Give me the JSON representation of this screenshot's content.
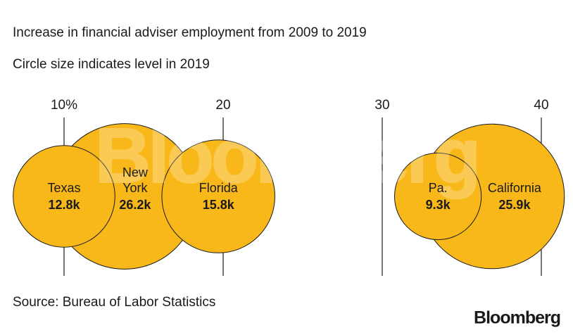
{
  "chart_data": {
    "type": "bubble",
    "title": "Increase in financial adviser employment from 2009 to 2019",
    "subtitle": "Circle size indicates level in 2019",
    "source": "Source: Bureau of Labor Statistics",
    "brand": "Bloomberg",
    "watermark": "Bloomberg",
    "categories": [
      "Texas",
      "New York",
      "Florida",
      "Pa.",
      "California"
    ],
    "x": [
      10.0,
      13.8,
      19.7,
      33.5,
      36.9
    ],
    "sizes": [
      12.8,
      26.2,
      15.8,
      9.3,
      25.9
    ],
    "value_labels": [
      "12.8k",
      "26.2k",
      "15.8k",
      "9.3k",
      "25.9k"
    ],
    "color": "#f9b81a",
    "xlim": [
      10,
      40
    ],
    "xticks": [
      {
        "value": 10,
        "label": "10%"
      },
      20,
      30,
      40
    ],
    "grid": true
  }
}
